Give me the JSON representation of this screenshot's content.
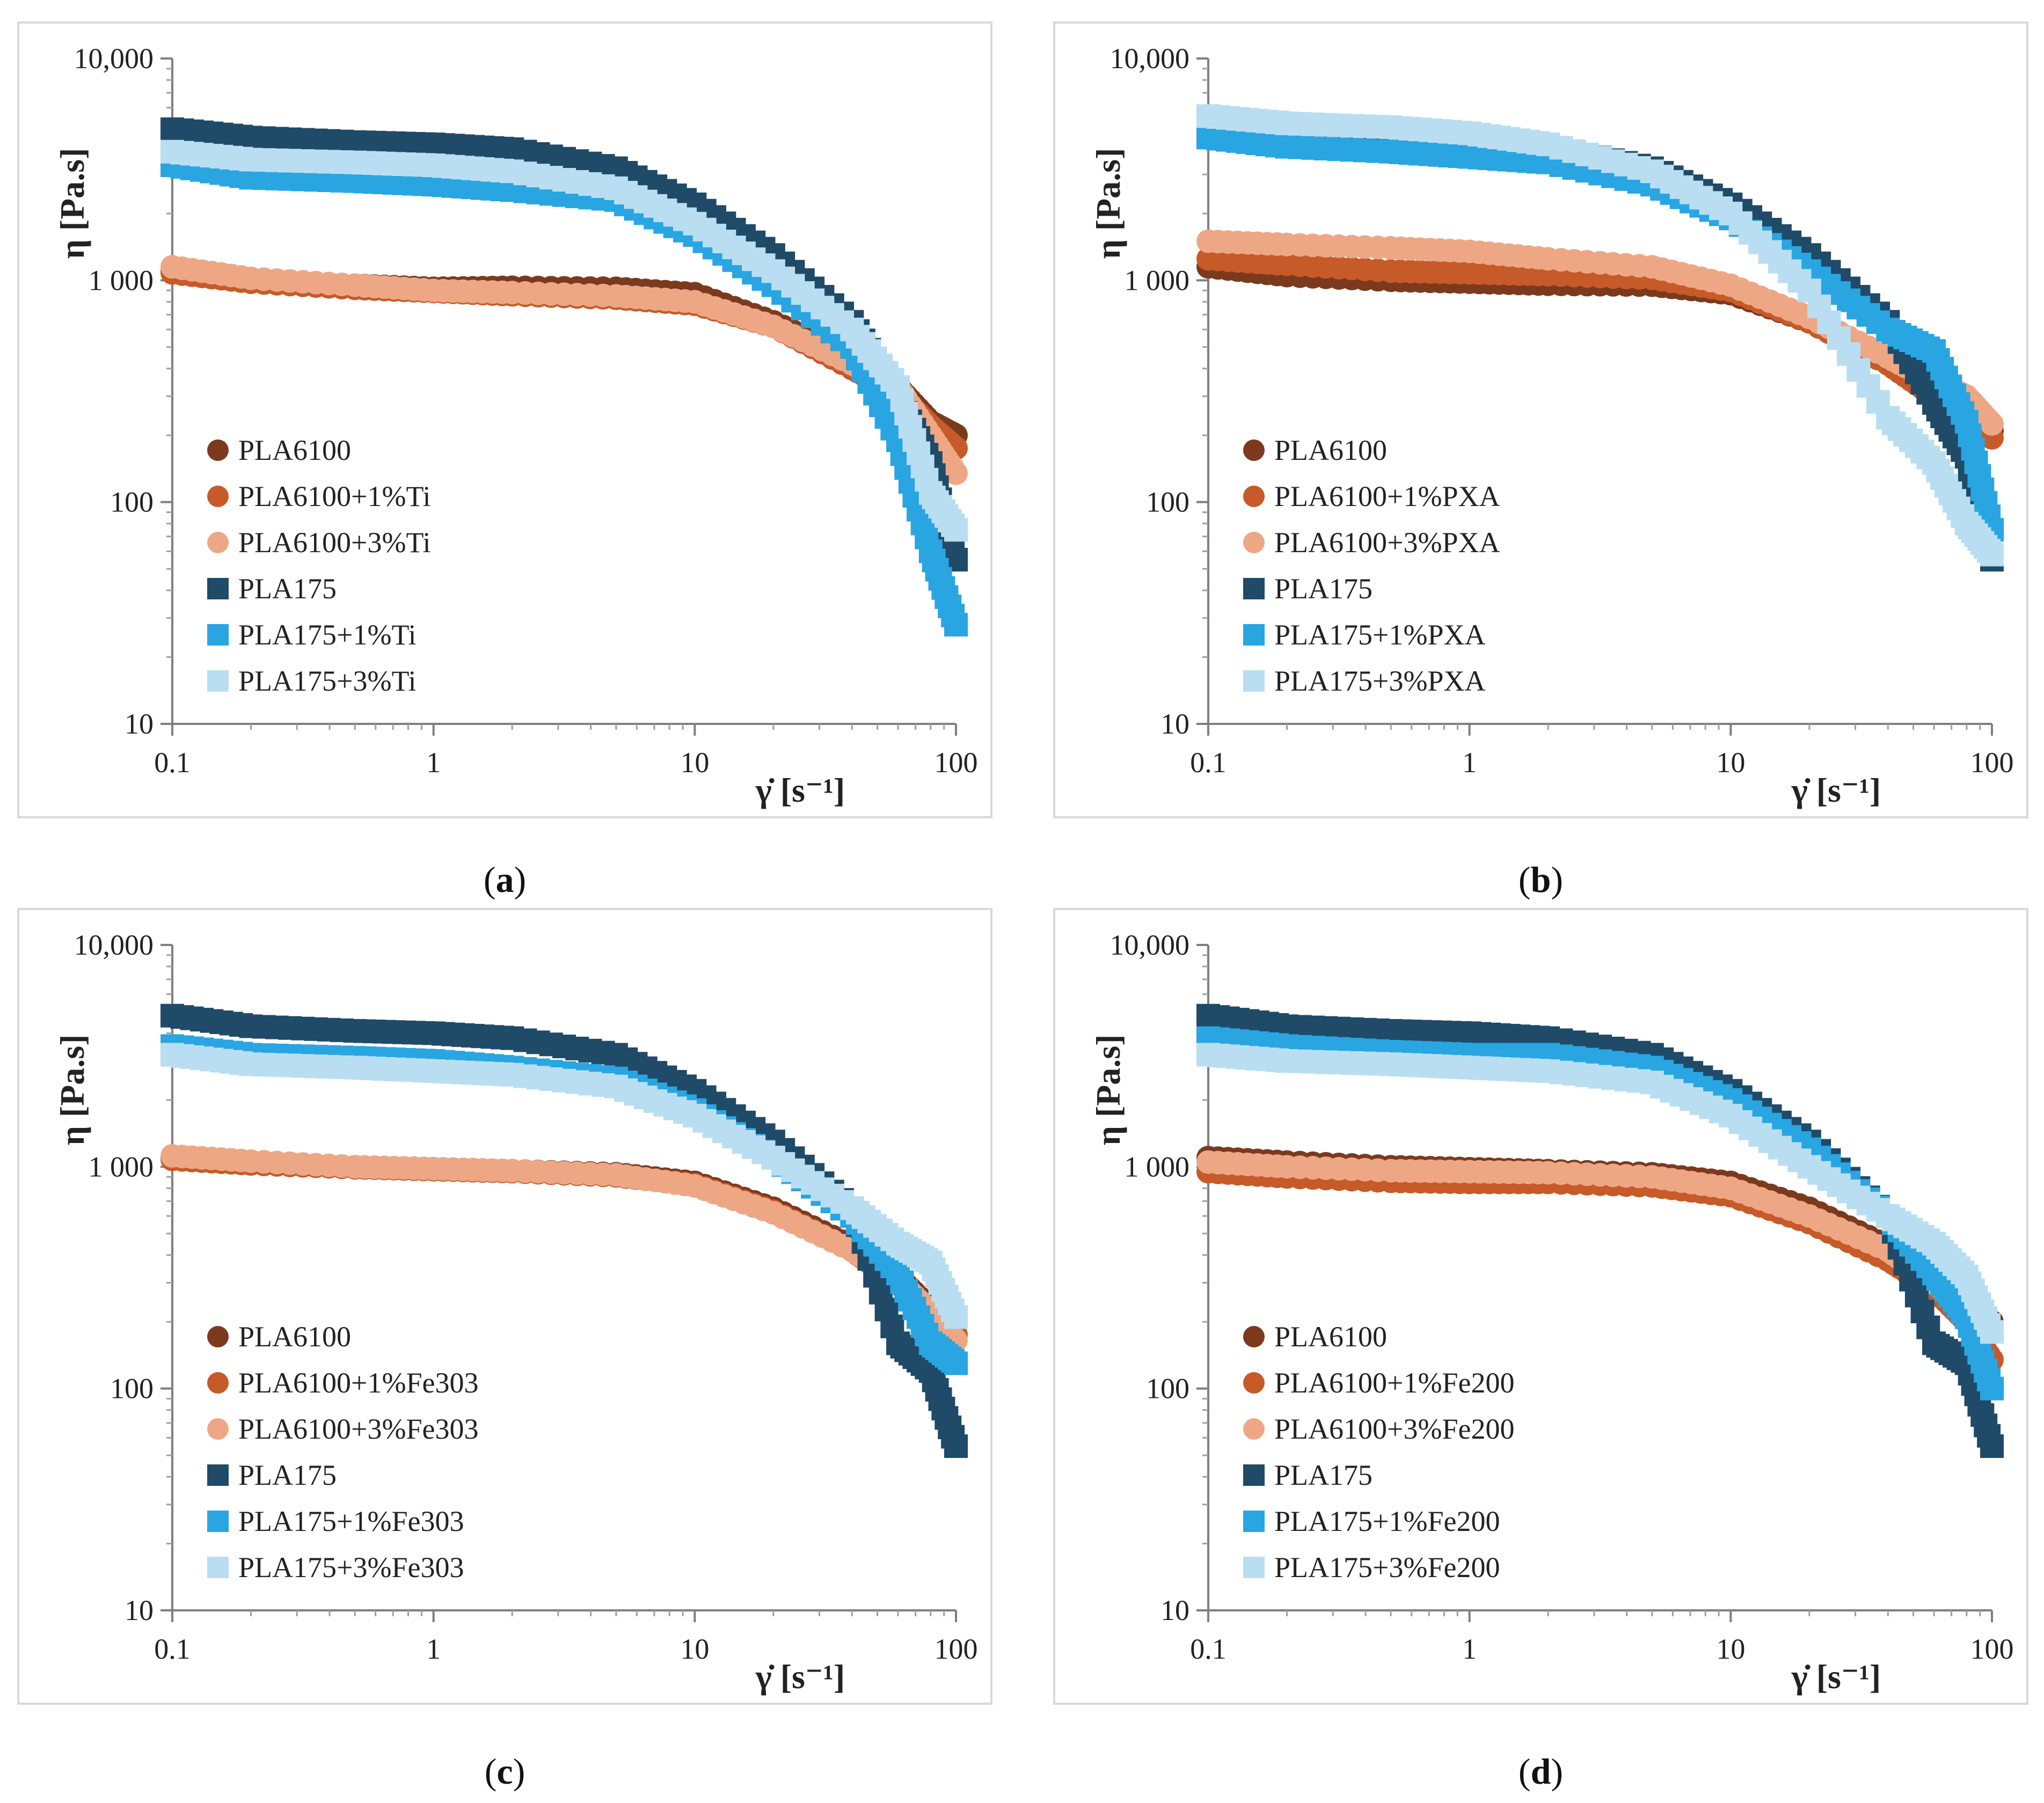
{
  "colors": {
    "PLA6100": "#7b3a1e",
    "PLA6100_1": "#c65a28",
    "PLA6100_3": "#eea785",
    "PLA175": "#1f4a68",
    "PLA175_1": "#29a5e2",
    "PLA175_3": "#b9def2"
  },
  "chart_data": [
    {
      "type": "scatter",
      "panel": "a",
      "caption_letter": "a",
      "xlabel": "γ̇ [s⁻¹]",
      "ylabel": "η [Pa.s]",
      "x_scale": "log",
      "y_scale": "log",
      "xlim": [
        0.1,
        100
      ],
      "ylim": [
        10,
        10000
      ],
      "x_ticks": [
        "0.1",
        "1",
        "10",
        "100"
      ],
      "y_ticks": [
        "10",
        "100",
        "1 000",
        "10,000"
      ],
      "legend_position": "bottom-left",
      "series": [
        {
          "name": "PLA6100",
          "marker": "circle",
          "color_key": "PLA6100",
          "x": [
            0.1,
            0.2,
            0.5,
            1,
            2,
            5,
            10,
            20,
            40,
            60,
            80,
            100
          ],
          "y": [
            1100,
            1000,
            950,
            920,
            930,
            920,
            870,
            650,
            440,
            330,
            230,
            200
          ]
        },
        {
          "name": "PLA6100+1%Ti",
          "marker": "circle",
          "color_key": "PLA6100_1",
          "x": [
            0.1,
            0.2,
            0.5,
            1,
            2,
            5,
            10,
            20,
            40,
            60,
            80,
            100
          ],
          "y": [
            1080,
            980,
            920,
            890,
            860,
            830,
            780,
            620,
            400,
            310,
            220,
            175
          ]
        },
        {
          "name": "PLA6100+3%Ti",
          "marker": "circle",
          "color_key": "PLA6100_3",
          "x": [
            0.1,
            0.2,
            0.5,
            1,
            2,
            5,
            10,
            20,
            40,
            60,
            80,
            100
          ],
          "y": [
            1150,
            1020,
            950,
            900,
            880,
            850,
            800,
            620,
            420,
            330,
            200,
            135
          ]
        },
        {
          "name": "PLA175",
          "marker": "square",
          "color_key": "PLA175",
          "x": [
            0.1,
            0.2,
            0.5,
            1,
            2,
            5,
            10,
            20,
            40,
            60,
            80,
            100
          ],
          "y": [
            4800,
            4400,
            4200,
            4100,
            3900,
            3200,
            2200,
            1300,
            650,
            300,
            150,
            55
          ]
        },
        {
          "name": "PLA175+1%Ti",
          "marker": "square",
          "color_key": "PLA175_1",
          "x": [
            0.1,
            0.2,
            0.5,
            1,
            2,
            5,
            10,
            20,
            40,
            60,
            80,
            100
          ],
          "y": [
            3300,
            2900,
            2800,
            2700,
            2550,
            2300,
            1600,
            950,
            500,
            190,
            60,
            28
          ]
        },
        {
          "name": "PLA175+3%Ti",
          "marker": "square",
          "color_key": "PLA175_3",
          "x": [
            0.1,
            0.2,
            0.5,
            1,
            2,
            5,
            10,
            20,
            40,
            60,
            80,
            100
          ],
          "y": [
            3800,
            3500,
            3400,
            3300,
            3100,
            2600,
            1800,
            1100,
            600,
            330,
            110,
            75
          ]
        }
      ]
    },
    {
      "type": "scatter",
      "panel": "b",
      "caption_letter": "b",
      "xlabel": "γ̇ [s⁻¹]",
      "ylabel": "η [Pa.s]",
      "x_scale": "log",
      "y_scale": "log",
      "xlim": [
        0.1,
        100
      ],
      "ylim": [
        10,
        10000
      ],
      "x_ticks": [
        "0.1",
        "1",
        "10",
        "100"
      ],
      "y_ticks": [
        "10",
        "100",
        "1 000",
        "10,000"
      ],
      "legend_position": "bottom-left",
      "series": [
        {
          "name": "PLA6100",
          "marker": "circle",
          "color_key": "PLA6100",
          "x": [
            0.1,
            0.2,
            0.5,
            1,
            2,
            5,
            10,
            20,
            40,
            60,
            80,
            100
          ],
          "y": [
            1150,
            1050,
            1000,
            980,
            960,
            950,
            870,
            650,
            420,
            320,
            250,
            210
          ]
        },
        {
          "name": "PLA6100+1%PXA",
          "marker": "circle",
          "color_key": "PLA6100_1",
          "x": [
            0.1,
            0.2,
            0.5,
            1,
            2,
            5,
            10,
            20,
            40,
            60,
            80,
            100
          ],
          "y": [
            1250,
            1180,
            1100,
            1080,
            1060,
            1020,
            900,
            650,
            420,
            300,
            240,
            195
          ]
        },
        {
          "name": "PLA6100+3%PXA",
          "marker": "circle",
          "color_key": "PLA6100_3",
          "x": [
            0.1,
            0.2,
            0.5,
            1,
            2,
            5,
            10,
            20,
            40,
            60,
            80,
            100
          ],
          "y": [
            1500,
            1450,
            1400,
            1350,
            1250,
            1150,
            950,
            680,
            450,
            350,
            300,
            225
          ]
        },
        {
          "name": "PLA175",
          "marker": "square",
          "color_key": "PLA175",
          "x": [
            0.1,
            0.2,
            0.5,
            1,
            2,
            5,
            10,
            20,
            40,
            60,
            80,
            100
          ],
          "y": [
            5000,
            4700,
            4500,
            4300,
            4000,
            3200,
            2200,
            1300,
            650,
            280,
            160,
            55
          ]
        },
        {
          "name": "PLA175+1%PXA",
          "marker": "square",
          "color_key": "PLA175_1",
          "x": [
            0.1,
            0.2,
            0.5,
            1,
            2,
            5,
            10,
            20,
            40,
            60,
            80,
            100
          ],
          "y": [
            4400,
            4000,
            3800,
            3600,
            3400,
            2700,
            1900,
            1100,
            600,
            480,
            230,
            75
          ]
        },
        {
          "name": "PLA175+3%PXA",
          "marker": "square",
          "color_key": "PLA175_3",
          "x": [
            0.1,
            0.2,
            0.5,
            1,
            2,
            5,
            10,
            20,
            40,
            60,
            80,
            100
          ],
          "y": [
            5500,
            5100,
            4900,
            4600,
            4100,
            3100,
            2000,
            900,
            240,
            150,
            80,
            58
          ]
        }
      ]
    },
    {
      "type": "scatter",
      "panel": "c",
      "caption_letter": "c",
      "xlabel": "γ̇ [s⁻¹]",
      "ylabel": "η [Pa.s]",
      "x_scale": "log",
      "y_scale": "log",
      "xlim": [
        0.1,
        100
      ],
      "ylim": [
        10,
        10000
      ],
      "x_ticks": [
        "0.1",
        "1",
        "10",
        "100"
      ],
      "y_ticks": [
        "10",
        "100",
        "1 000",
        "10,000"
      ],
      "legend_position": "bottom-left",
      "series": [
        {
          "name": "PLA6100",
          "marker": "circle",
          "color_key": "PLA6100",
          "x": [
            0.1,
            0.2,
            0.5,
            1,
            2,
            5,
            10,
            20,
            40,
            60,
            80,
            100
          ],
          "y": [
            1100,
            1050,
            1000,
            980,
            960,
            930,
            850,
            650,
            440,
            320,
            230,
            200
          ]
        },
        {
          "name": "PLA6100+1%Fe303",
          "marker": "circle",
          "color_key": "PLA6100_1",
          "x": [
            0.1,
            0.2,
            0.5,
            1,
            2,
            5,
            10,
            20,
            40,
            60,
            80,
            100
          ],
          "y": [
            1080,
            1030,
            990,
            970,
            950,
            910,
            830,
            630,
            420,
            300,
            210,
            175
          ]
        },
        {
          "name": "PLA6100+3%Fe303",
          "marker": "circle",
          "color_key": "PLA6100_3",
          "x": [
            0.1,
            0.2,
            0.5,
            1,
            2,
            5,
            10,
            20,
            40,
            60,
            80,
            100
          ],
          "y": [
            1120,
            1060,
            1000,
            980,
            960,
            920,
            820,
            620,
            420,
            310,
            220,
            165
          ]
        },
        {
          "name": "PLA175",
          "marker": "square",
          "color_key": "PLA175",
          "x": [
            0.1,
            0.2,
            0.5,
            1,
            2,
            5,
            10,
            20,
            40,
            60,
            80,
            100
          ],
          "y": [
            4800,
            4300,
            4100,
            4000,
            3800,
            3200,
            2200,
            1300,
            650,
            160,
            120,
            55
          ]
        },
        {
          "name": "PLA175+1%Fe303",
          "marker": "square",
          "color_key": "PLA175_1",
          "x": [
            0.1,
            0.2,
            0.5,
            1,
            2,
            5,
            10,
            20,
            40,
            60,
            80,
            100
          ],
          "y": [
            3500,
            3200,
            3100,
            3000,
            2800,
            2500,
            1800,
            1100,
            600,
            330,
            160,
            130
          ]
        },
        {
          "name": "PLA175+3%Fe303",
          "marker": "square",
          "color_key": "PLA175_3",
          "x": [
            0.1,
            0.2,
            0.5,
            1,
            2,
            5,
            10,
            20,
            40,
            60,
            80,
            100
          ],
          "y": [
            3200,
            2900,
            2800,
            2700,
            2600,
            2300,
            1700,
            1100,
            650,
            450,
            370,
            210
          ]
        }
      ]
    },
    {
      "type": "scatter",
      "panel": "d",
      "caption_letter": "d",
      "xlabel": "γ̇ [s⁻¹]",
      "ylabel": "η [Pa.s]",
      "x_scale": "log",
      "y_scale": "log",
      "xlim": [
        0.1,
        100
      ],
      "ylim": [
        10,
        10000
      ],
      "x_ticks": [
        "0.1",
        "1",
        "10",
        "100"
      ],
      "y_ticks": [
        "10",
        "100",
        "1 000",
        "10,000"
      ],
      "legend_position": "bottom-left",
      "series": [
        {
          "name": "PLA6100",
          "marker": "circle",
          "color_key": "PLA6100",
          "x": [
            0.1,
            0.2,
            0.5,
            1,
            2,
            5,
            10,
            20,
            40,
            60,
            80,
            100
          ],
          "y": [
            1100,
            1050,
            1000,
            980,
            960,
            930,
            850,
            650,
            440,
            320,
            230,
            200
          ]
        },
        {
          "name": "PLA6100+1%Fe200",
          "marker": "circle",
          "color_key": "PLA6100_1",
          "x": [
            0.1,
            0.2,
            0.5,
            1,
            2,
            5,
            10,
            20,
            40,
            60,
            80,
            100
          ],
          "y": [
            950,
            900,
            860,
            850,
            850,
            820,
            740,
            560,
            380,
            280,
            200,
            135
          ]
        },
        {
          "name": "PLA6100+3%Fe200",
          "marker": "circle",
          "color_key": "PLA6100_3",
          "x": [
            0.1,
            0.2,
            0.5,
            1,
            2,
            5,
            10,
            20,
            40,
            60,
            80,
            100
          ],
          "y": [
            1050,
            1000,
            960,
            950,
            940,
            900,
            800,
            600,
            420,
            300,
            230,
            180
          ]
        },
        {
          "name": "PLA175",
          "marker": "square",
          "color_key": "PLA175",
          "x": [
            0.1,
            0.2,
            0.5,
            1,
            2,
            5,
            10,
            20,
            40,
            60,
            80,
            100
          ],
          "y": [
            4800,
            4300,
            4100,
            4000,
            3800,
            3200,
            2200,
            1300,
            600,
            160,
            130,
            55
          ]
        },
        {
          "name": "PLA175+1%Fe200",
          "marker": "square",
          "color_key": "PLA175_1",
          "x": [
            0.1,
            0.2,
            0.5,
            1,
            2,
            5,
            10,
            20,
            40,
            60,
            80,
            100
          ],
          "y": [
            3800,
            3500,
            3300,
            3200,
            3200,
            2800,
            2000,
            1200,
            600,
            330,
            210,
            100
          ]
        },
        {
          "name": "PLA175+3%Fe200",
          "marker": "square",
          "color_key": "PLA175_3",
          "x": [
            0.1,
            0.2,
            0.5,
            1,
            2,
            5,
            10,
            20,
            40,
            60,
            80,
            100
          ],
          "y": [
            3200,
            3000,
            2900,
            2800,
            2700,
            2400,
            1700,
            1000,
            600,
            450,
            320,
            180
          ]
        }
      ]
    }
  ]
}
